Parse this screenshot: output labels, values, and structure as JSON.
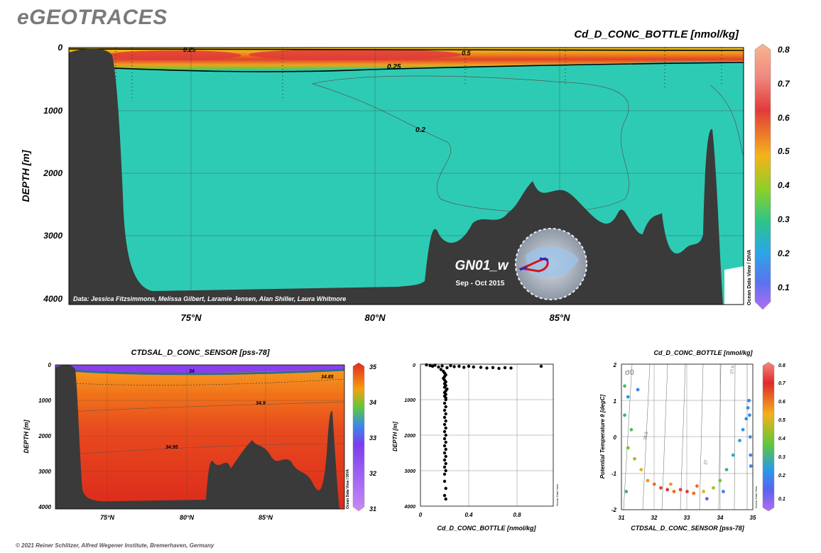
{
  "brand": "eGEOTRACES",
  "footer": "© 2021 Reiner Schlitzer, Alfred Wegener Institute, Bremerhaven, Germany",
  "colors": {
    "seafloor": "#3a3a3a",
    "cd_background": "#2ecbb4",
    "sal_background": "#e8321e"
  },
  "chart_data": [
    {
      "id": "main-section",
      "type": "heatmap",
      "title": "Cd_D_CONC_BOTTLE [nmol/kg]",
      "ylabel": "DEPTH [m]",
      "xlabel": "",
      "x_ticks": [
        "75°N",
        "80°N",
        "85°N"
      ],
      "x_tick_values": [
        75,
        80,
        85
      ],
      "xlim": [
        72,
        90
      ],
      "y_ticks": [
        "0",
        "1000",
        "2000",
        "3000",
        "4000"
      ],
      "y_tick_values": [
        0,
        1000,
        2000,
        3000,
        4000
      ],
      "ylim": [
        0,
        4000
      ],
      "colorbar": {
        "ticks": [
          "0.8",
          "0.7",
          "0.6",
          "0.5",
          "0.4",
          "0.3",
          "0.2",
          "0.1"
        ],
        "range": [
          0.03,
          0.82
        ]
      },
      "contour_labels": [
        "0.25",
        "0.5",
        "0.25",
        "0.2"
      ],
      "credit": "Data: Jessica Fitzsimmons, Melissa Gilbert, Laramie Jensen, Alan Shiller, Laura Whitmore",
      "cruise": "GN01_w",
      "period": "Sep - Oct 2015",
      "watermark": "Ocean Data View / DIVA"
    },
    {
      "id": "salinity-section",
      "type": "heatmap",
      "title": "CTDSAL_D_CONC_SENSOR [pss-78]",
      "ylabel": "DEPTH [m]",
      "x_ticks": [
        "75°N",
        "80°N",
        "85°N"
      ],
      "x_tick_values": [
        75,
        80,
        85
      ],
      "xlim": [
        72,
        90
      ],
      "y_ticks": [
        "0",
        "1000",
        "2000",
        "3000",
        "4000"
      ],
      "y_tick_values": [
        0,
        1000,
        2000,
        3000,
        4000
      ],
      "ylim": [
        0,
        4000
      ],
      "colorbar": {
        "ticks": [
          "35",
          "34",
          "33",
          "32",
          "31"
        ],
        "range": [
          31,
          35
        ]
      },
      "contour_labels": [
        "34",
        "34.85",
        "34.9",
        "34.95"
      ],
      "watermark": "Ocean Data View / DIVA"
    },
    {
      "id": "profile",
      "type": "scatter",
      "xlabel": "Cd_D_CONC_BOTTLE [nmol/kg]",
      "ylabel": "DEPTH [m]",
      "x_ticks": [
        "0",
        "0.4",
        "0.8"
      ],
      "x_tick_values": [
        0,
        0.4,
        0.8
      ],
      "xlim": [
        0,
        1.1
      ],
      "y_ticks": [
        "0",
        "1000",
        "2000",
        "3000",
        "4000"
      ],
      "y_tick_values": [
        0,
        1000,
        2000,
        3000,
        4000
      ],
      "ylim": [
        0,
        4000
      ],
      "watermark": "Ocean Data View",
      "points": [
        [
          0.05,
          20
        ],
        [
          0.08,
          40
        ],
        [
          0.1,
          60
        ],
        [
          0.12,
          30
        ],
        [
          0.15,
          80
        ],
        [
          0.18,
          50
        ],
        [
          0.22,
          100
        ],
        [
          0.25,
          40
        ],
        [
          0.28,
          70
        ],
        [
          0.32,
          60
        ],
        [
          0.36,
          90
        ],
        [
          0.4,
          60
        ],
        [
          0.44,
          80
        ],
        [
          0.5,
          90
        ],
        [
          0.55,
          110
        ],
        [
          0.6,
          95
        ],
        [
          0.65,
          120
        ],
        [
          0.7,
          100
        ],
        [
          0.75,
          110
        ],
        [
          1.0,
          60
        ],
        [
          0.17,
          150
        ],
        [
          0.19,
          200
        ],
        [
          0.2,
          250
        ],
        [
          0.21,
          300
        ],
        [
          0.2,
          350
        ],
        [
          0.19,
          400
        ],
        [
          0.2,
          450
        ],
        [
          0.21,
          500
        ],
        [
          0.2,
          550
        ],
        [
          0.21,
          600
        ],
        [
          0.2,
          650
        ],
        [
          0.22,
          700
        ],
        [
          0.21,
          750
        ],
        [
          0.2,
          800
        ],
        [
          0.21,
          850
        ],
        [
          0.2,
          900
        ],
        [
          0.21,
          950
        ],
        [
          0.21,
          1000
        ],
        [
          0.2,
          1100
        ],
        [
          0.21,
          1200
        ],
        [
          0.2,
          1300
        ],
        [
          0.21,
          1400
        ],
        [
          0.2,
          1500
        ],
        [
          0.21,
          1600
        ],
        [
          0.2,
          1700
        ],
        [
          0.21,
          1800
        ],
        [
          0.2,
          1900
        ],
        [
          0.21,
          2000
        ],
        [
          0.2,
          2100
        ],
        [
          0.21,
          2200
        ],
        [
          0.2,
          2300
        ],
        [
          0.21,
          2400
        ],
        [
          0.2,
          2500
        ],
        [
          0.21,
          2600
        ],
        [
          0.2,
          2700
        ],
        [
          0.21,
          2800
        ],
        [
          0.2,
          2900
        ],
        [
          0.21,
          3000
        ],
        [
          0.2,
          3100
        ],
        [
          0.2,
          3300
        ],
        [
          0.21,
          3500
        ],
        [
          0.2,
          3700
        ],
        [
          0.21,
          3800
        ]
      ]
    },
    {
      "id": "ts-plot",
      "type": "scatter",
      "title": "Cd_D_CONC_BOTTLE [nmol/kg]",
      "xlabel": "CTDSAL_D_CONC_SENSOR [pss-78]",
      "ylabel": "Potential Temperature θ [degC]",
      "x_ticks": [
        "31",
        "32",
        "33",
        "34",
        "35"
      ],
      "x_tick_values": [
        31,
        32,
        33,
        34,
        35
      ],
      "xlim": [
        31,
        35
      ],
      "y_ticks": [
        "2",
        "1",
        "0",
        "-1",
        "-2"
      ],
      "y_tick_values": [
        2,
        1,
        0,
        -1,
        -2
      ],
      "ylim": [
        -2,
        2
      ],
      "colorbar": {
        "ticks": [
          "0.8",
          "0.7",
          "0.6",
          "0.5",
          "0.4",
          "0.3",
          "0.2",
          "0.1"
        ],
        "range": [
          0.03,
          0.82
        ]
      },
      "isopycnal_labels": [
        "σ0",
        "25.5",
        "27",
        "27.5"
      ],
      "watermark": "Ocean Data View",
      "points": [
        [
          31.1,
          1.4,
          0.35
        ],
        [
          31.2,
          1.1,
          0.25
        ],
        [
          31.1,
          0.6,
          0.3
        ],
        [
          31.3,
          0.2,
          0.35
        ],
        [
          31.2,
          -0.3,
          0.4
        ],
        [
          31.4,
          -0.6,
          0.45
        ],
        [
          31.6,
          -0.9,
          0.5
        ],
        [
          31.8,
          -1.2,
          0.55
        ],
        [
          32.0,
          -1.3,
          0.6
        ],
        [
          32.2,
          -1.4,
          0.65
        ],
        [
          32.4,
          -1.45,
          0.7
        ],
        [
          32.6,
          -1.5,
          0.6
        ],
        [
          32.8,
          -1.45,
          0.65
        ],
        [
          33.0,
          -1.5,
          0.7
        ],
        [
          33.2,
          -1.55,
          0.6
        ],
        [
          33.5,
          -1.5,
          0.5
        ],
        [
          33.8,
          -1.4,
          0.45
        ],
        [
          34.0,
          -1.2,
          0.4
        ],
        [
          34.2,
          -0.9,
          0.3
        ],
        [
          34.4,
          -0.5,
          0.28
        ],
        [
          34.6,
          -0.1,
          0.25
        ],
        [
          34.7,
          0.2,
          0.25
        ],
        [
          34.8,
          0.5,
          0.22
        ],
        [
          34.85,
          0.8,
          0.22
        ],
        [
          34.88,
          1.0,
          0.2
        ],
        [
          34.9,
          0.6,
          0.22
        ],
        [
          34.92,
          0.0,
          0.22
        ],
        [
          34.93,
          -0.5,
          0.2
        ],
        [
          34.94,
          -0.8,
          0.2
        ],
        [
          31.5,
          1.3,
          0.2
        ],
        [
          31.15,
          -1.5,
          0.3
        ],
        [
          32.5,
          -1.3,
          0.55
        ],
        [
          33.3,
          -1.35,
          0.6
        ],
        [
          34.1,
          -1.5,
          0.2
        ],
        [
          33.6,
          -1.7,
          0.15
        ]
      ]
    }
  ]
}
